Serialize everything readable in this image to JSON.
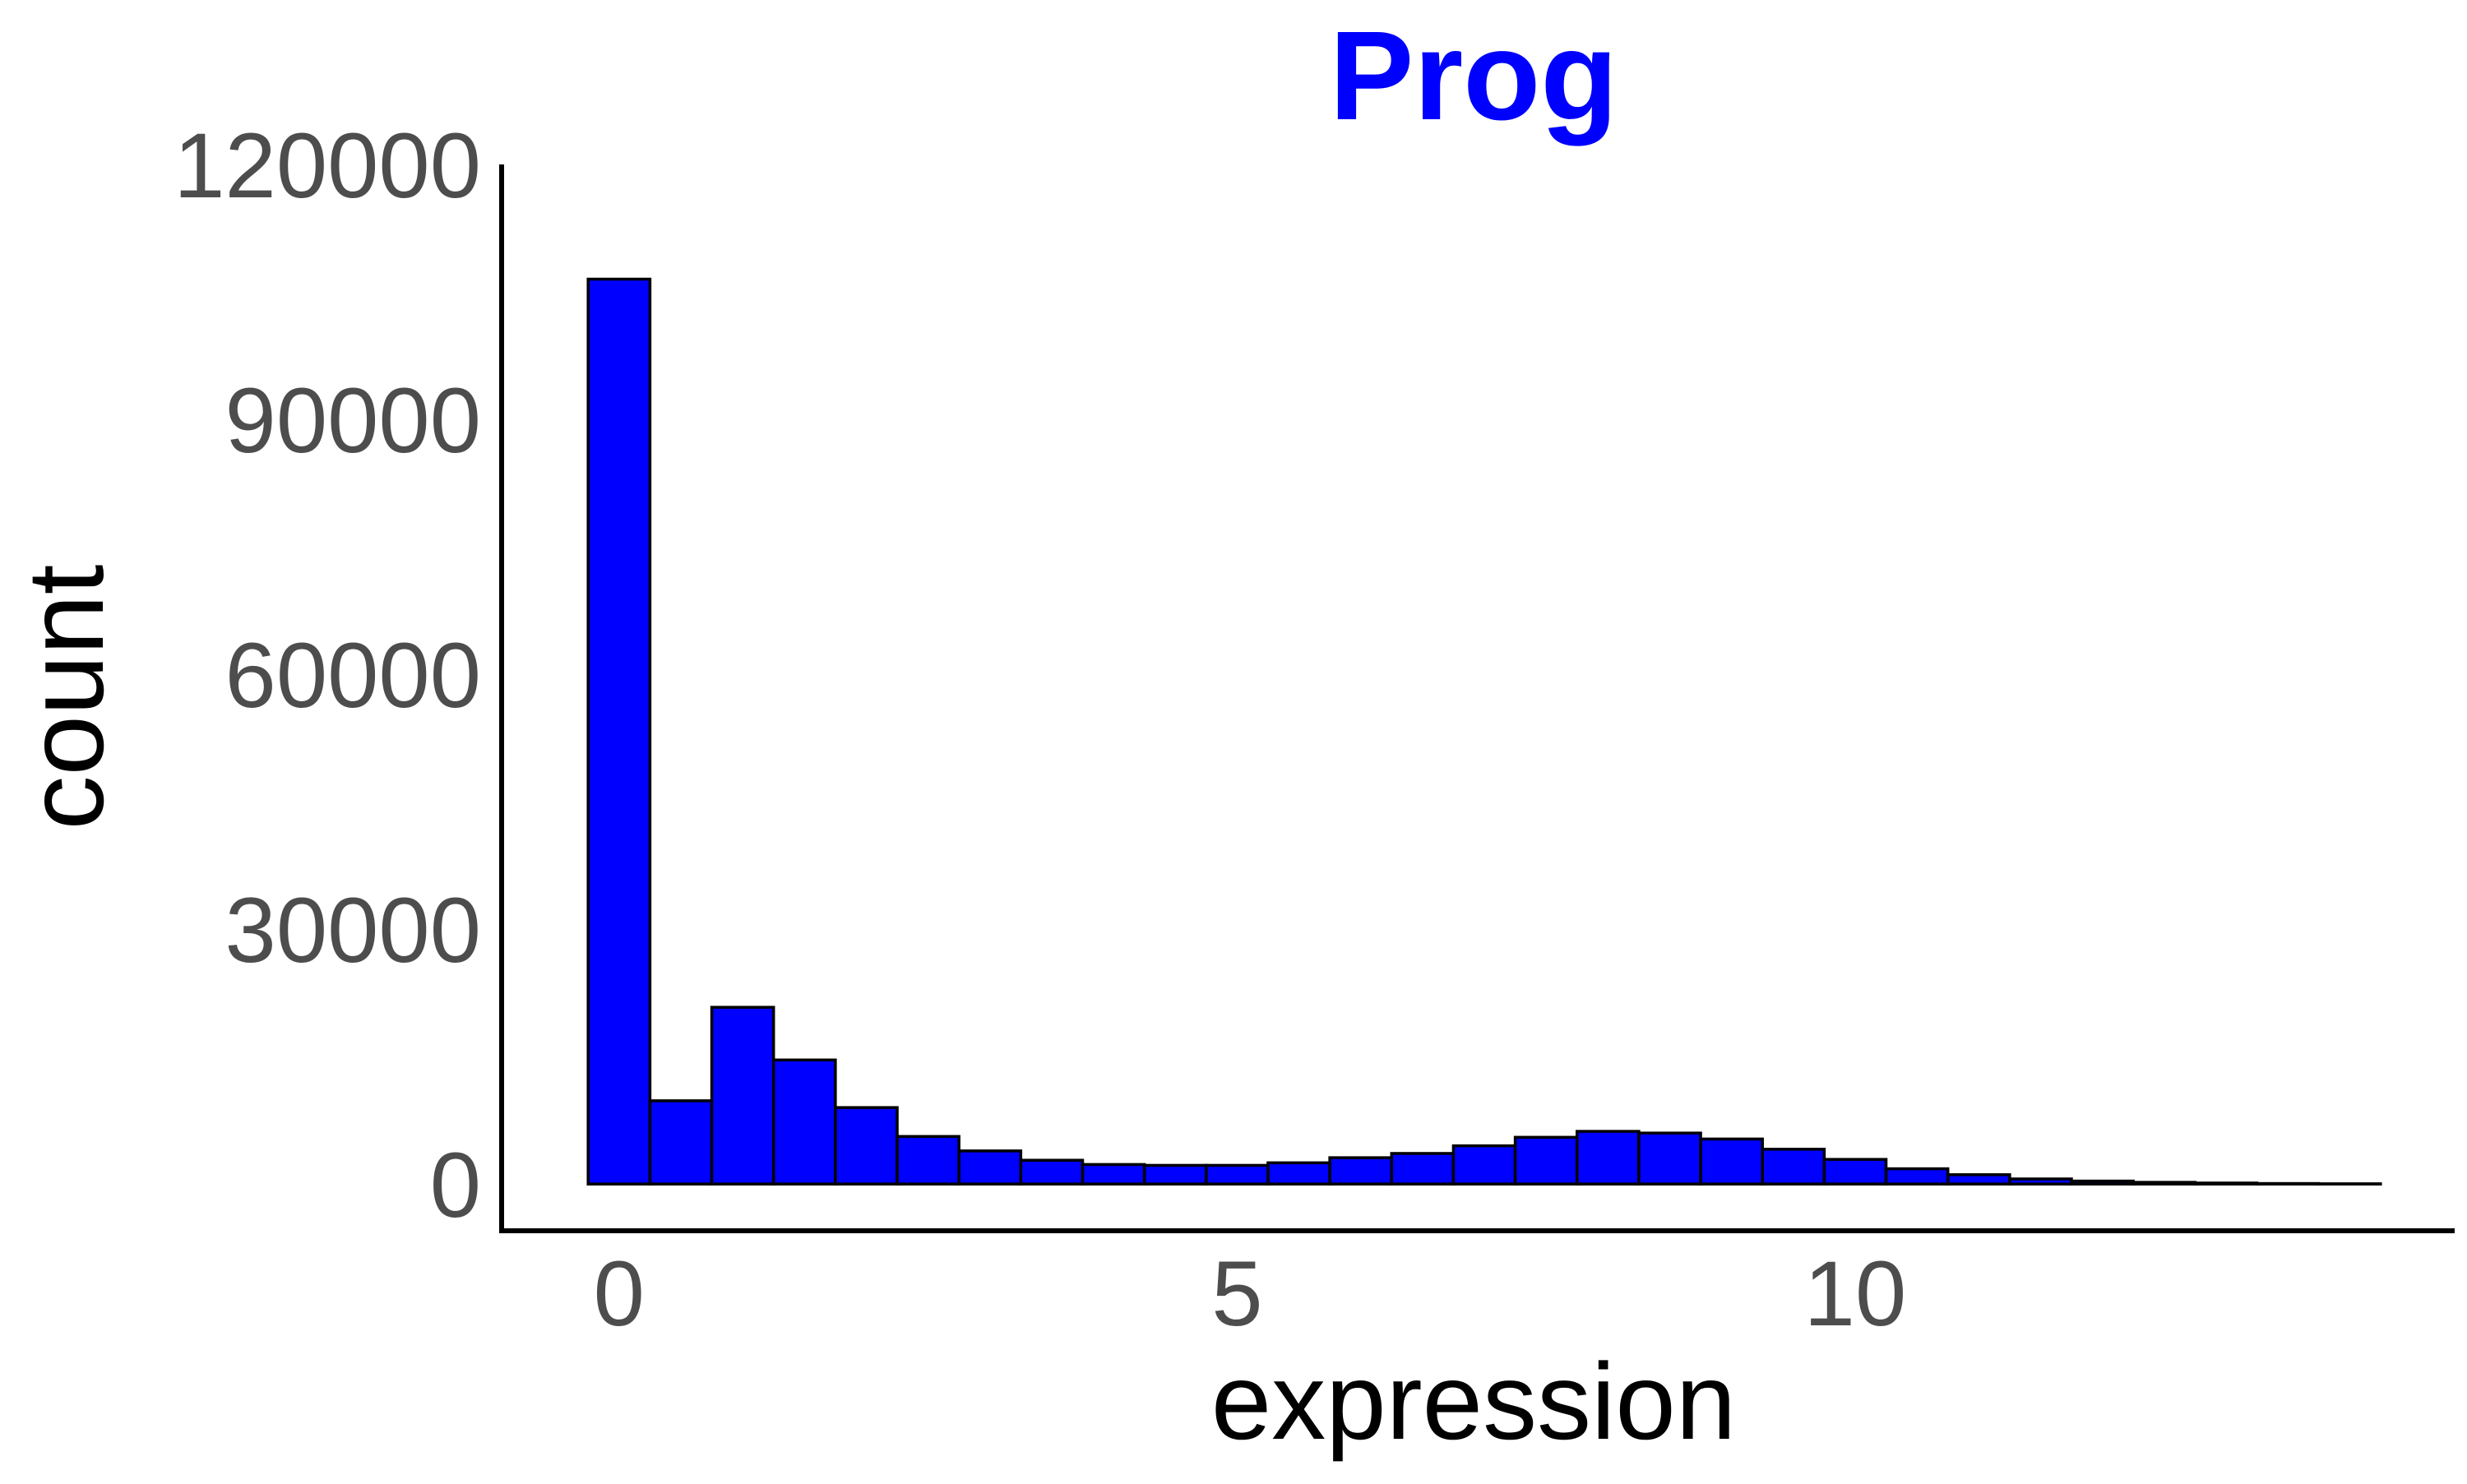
{
  "chart_data": {
    "type": "bar",
    "subtype": "histogram",
    "title": "Prog",
    "title_color": "#0000ff",
    "xlabel": "expression",
    "ylabel": "count",
    "fill_color": "#0000ff",
    "outline_color": "#000000",
    "bin_width": 0.5,
    "x_bin_starts": [
      -0.25,
      0.25,
      0.75,
      1.25,
      1.75,
      2.25,
      2.75,
      3.25,
      3.75,
      4.25,
      4.75,
      5.25,
      5.75,
      6.25,
      6.75,
      7.25,
      7.75,
      8.25,
      8.75,
      9.25,
      9.75,
      10.25,
      10.75,
      11.25,
      11.75,
      12.25,
      12.75,
      13.25,
      13.75
    ],
    "values": [
      106500,
      9800,
      20800,
      14600,
      9000,
      5600,
      3900,
      2800,
      2300,
      2200,
      2200,
      2500,
      3100,
      3600,
      4500,
      5500,
      6200,
      6000,
      5300,
      4100,
      2900,
      1800,
      1100,
      600,
      350,
      200,
      120,
      60,
      30
    ],
    "xlim": [
      -0.95,
      14.85
    ],
    "ylim": [
      -5500,
      120000
    ],
    "x_ticks": [
      0,
      5,
      10
    ],
    "x_tick_labels": [
      "0",
      "5",
      "10"
    ],
    "y_ticks": [
      0,
      30000,
      60000,
      90000,
      120000
    ],
    "y_tick_labels": [
      "0",
      "30000",
      "60000",
      "90000",
      "120000"
    ],
    "grid": false
  }
}
